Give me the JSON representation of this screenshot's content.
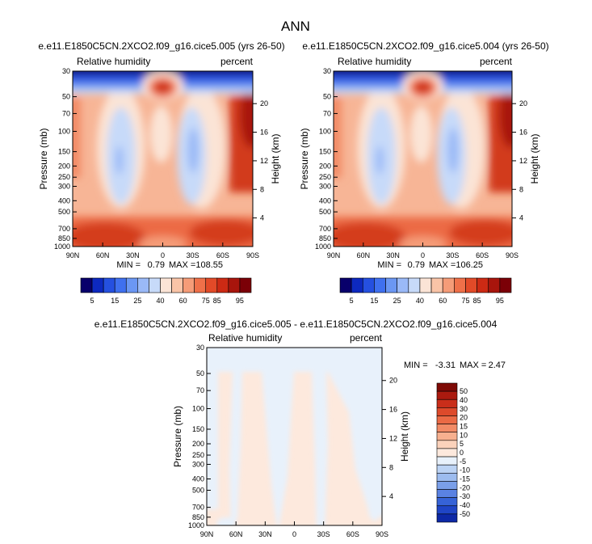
{
  "figure": {
    "title": "ANN"
  },
  "palettes": {
    "abs": [
      "#08006b",
      "#0d29c0",
      "#2550e0",
      "#3f70ef",
      "#6b97f3",
      "#9ab9f7",
      "#c7daf9",
      "#fbe4d6",
      "#f9c4a7",
      "#f59c78",
      "#ef7049",
      "#e24a28",
      "#cc2a14",
      "#a8150c",
      "#7b0007"
    ],
    "diff": [
      "#e8f1fb",
      "#d5e5f8",
      "#bcd3f4",
      "#9dbcef",
      "#7a9fe9",
      "#5a82e2",
      "#3663d7",
      "#1f45c6",
      "#0d28a6",
      "#040d6d",
      "#fde9dd",
      "#fbd2bb",
      "#f7b08f",
      "#f28b66",
      "#eb6a45",
      "#dd4a2b",
      "#c92e1a",
      "#ab1a0f",
      "#7e0a06"
    ]
  },
  "chart_data": [
    {
      "type": "heatmap",
      "panel": "case1",
      "title": "e.e11.E1850C5CN.2XCO2.f09_g16.cice5.005 (yrs 26-50)",
      "left_label": "Relative humidity",
      "right_label": "percent",
      "ylabel": "Pressure (mb)",
      "ylabel_right": "Height (km)",
      "x_ticks": [
        "90N",
        "60N",
        "30N",
        "0",
        "30S",
        "60S",
        "90S"
      ],
      "y_ticks": [
        "30",
        "50",
        "70",
        "100",
        "150",
        "200",
        "250",
        "300",
        "400",
        "500",
        "700",
        "850",
        "1000"
      ],
      "y_ticks_right": [
        "20",
        "16",
        "12",
        "8",
        "4"
      ],
      "y_ticks_right_km": [
        20,
        16,
        12,
        8,
        4
      ],
      "ylim": [
        1000,
        30
      ],
      "min_label": "MIN =",
      "min_value": "0.79",
      "max_label": "MAX =",
      "max_value": "108.55",
      "colorbar_labels": [
        "5",
        "15",
        "25",
        "40",
        "60",
        "75",
        "85",
        "95"
      ]
    },
    {
      "type": "heatmap",
      "panel": "case2",
      "title": "e.e11.E1850C5CN.2XCO2.f09_g16.cice5.004 (yrs 26-50)",
      "left_label": "Relative humidity",
      "right_label": "percent",
      "ylabel": "Pressure (mb)",
      "ylabel_right": "Height (km)",
      "x_ticks": [
        "90N",
        "60N",
        "30N",
        "0",
        "30S",
        "60S",
        "90S"
      ],
      "y_ticks": [
        "30",
        "50",
        "70",
        "100",
        "150",
        "200",
        "250",
        "300",
        "400",
        "500",
        "700",
        "850",
        "1000"
      ],
      "y_ticks_right": [
        "20",
        "16",
        "12",
        "8",
        "4"
      ],
      "y_ticks_right_km": [
        20,
        16,
        12,
        8,
        4
      ],
      "ylim": [
        1000,
        30
      ],
      "min_label": "MIN =",
      "min_value": "0.79",
      "max_label": "MAX =",
      "max_value": "106.25",
      "colorbar_labels": [
        "5",
        "15",
        "25",
        "40",
        "60",
        "75",
        "85",
        "95"
      ]
    },
    {
      "type": "heatmap",
      "panel": "difference",
      "title": "e.e11.E1850C5CN.2XCO2.f09_g16.cice5.005 - e.e11.E1850C5CN.2XCO2.f09_g16.cice5.004",
      "left_label": "Relative humidity",
      "right_label": "percent",
      "ylabel": "Pressure (mb)",
      "ylabel_right": "Height (km)",
      "x_ticks": [
        "90N",
        "60N",
        "30N",
        "0",
        "30S",
        "60S",
        "90S"
      ],
      "y_ticks": [
        "30",
        "50",
        "70",
        "100",
        "150",
        "200",
        "250",
        "300",
        "400",
        "500",
        "700",
        "850",
        "1000"
      ],
      "y_ticks_right": [
        "20",
        "16",
        "12",
        "8",
        "4"
      ],
      "y_ticks_right_km": [
        20,
        16,
        12,
        8,
        4
      ],
      "ylim": [
        1000,
        30
      ],
      "min_label": "MIN =",
      "min_value": "-3.31",
      "max_label": "MAX =",
      "max_value": "2.47",
      "colorbar_labels": [
        "50",
        "40",
        "30",
        "20",
        "15",
        "10",
        "5",
        "0",
        "-5",
        "-10",
        "-15",
        "-20",
        "-30",
        "-40",
        "-50"
      ]
    }
  ]
}
